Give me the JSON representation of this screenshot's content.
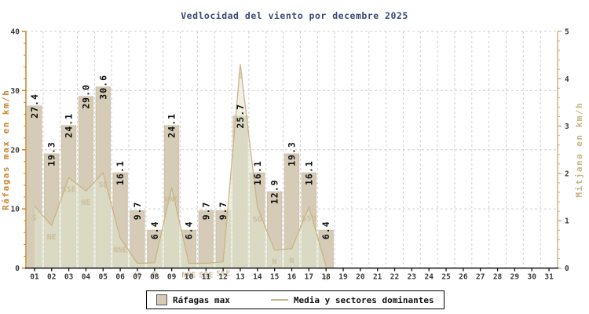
{
  "chart_data": {
    "type": "bar",
    "title": "Vedlocidad del viento por decembre 2025",
    "categories": [
      "01",
      "02",
      "03",
      "04",
      "05",
      "06",
      "07",
      "08",
      "09",
      "10",
      "11",
      "12",
      "13",
      "14",
      "15",
      "16",
      "17",
      "18",
      "19",
      "20",
      "21",
      "22",
      "23",
      "24",
      "25",
      "26",
      "27",
      "28",
      "29",
      "30",
      "31"
    ],
    "left_axis": {
      "label": "Ráfagas max en km/h",
      "min": 0,
      "max": 40,
      "major_ticks": [
        0,
        10,
        20,
        30,
        40
      ],
      "minor_step": 2,
      "color": "#c8862e"
    },
    "right_axis": {
      "label": "Mitjana en km/h",
      "min": 0,
      "max": 5,
      "major_ticks": [
        0,
        1,
        2,
        3,
        4,
        5
      ],
      "minor_step": 0.2,
      "color": "#c9b583"
    },
    "series": [
      {
        "name": "Ráfagas max",
        "type": "bar",
        "value_labels": [
          "27.4",
          "19.3",
          "24.1",
          "29.0",
          "30.6",
          "16.1",
          "9.7",
          "6.4",
          "24.1",
          "6.4",
          "9.7",
          "9.7",
          "25.7",
          "16.1",
          "12.9",
          "19.3",
          "16.1",
          "6.4"
        ]
      },
      {
        "name": "Media y sectores dominantes",
        "type": "area-line",
        "axis": "right",
        "values": [
          1.31,
          0.9,
          1.91,
          1.63,
          2.01,
          0.63,
          0.1,
          0.11,
          1.7,
          0.1,
          0.1,
          0.13,
          4.31,
          1.28,
          0.38,
          0.41,
          1.29,
          0.04
        ],
        "sectors": [
          "S",
          "NE",
          "SSE",
          "NE",
          "SE",
          "NNE",
          "W",
          "N",
          "NNE",
          "NNE",
          "SSE",
          "SSE",
          "S",
          "SO",
          "N",
          "N",
          "SSO",
          "N"
        ]
      }
    ],
    "legend": {
      "bar": "Ráfagas max",
      "line": "Media y sectores dominantes"
    },
    "grid": true,
    "legend_position": "bottom-center"
  },
  "colors": {
    "title": "#3a4a78",
    "bar_fill": "#d5cbb7",
    "bar_stroke": "#cdc1a9",
    "media_line": "#c9b583",
    "media_area": "rgba(223,230,208,0.55)",
    "sector_text": "#ccbe9b",
    "left_axis": "#c8862e",
    "right_axis": "#c9b583",
    "grid": "#cfcfcf",
    "tick_text": "#3a3a3a",
    "value_text": "#111111",
    "bottom_axis": "#111111"
  }
}
